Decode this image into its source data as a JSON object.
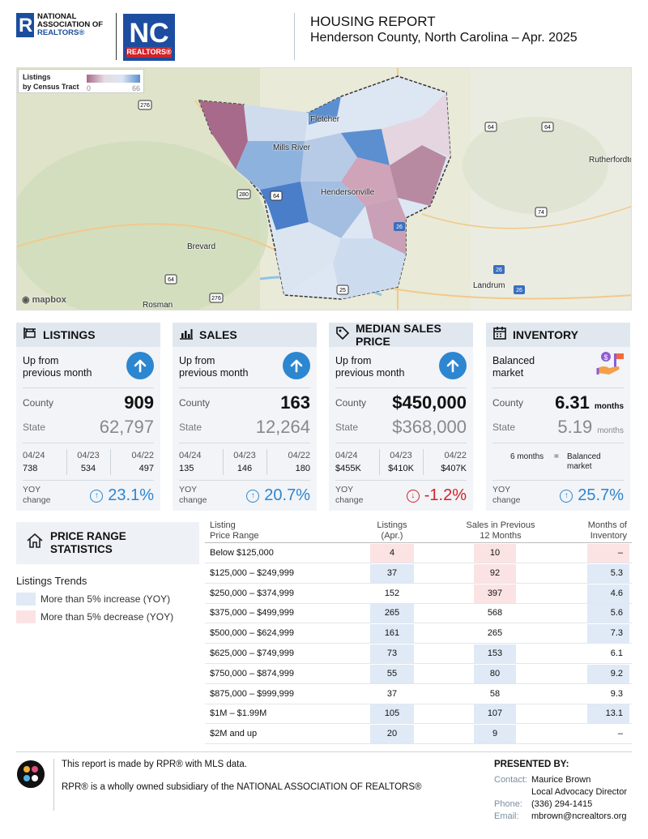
{
  "header": {
    "nar_logo_line1": "NATIONAL",
    "nar_logo_line2": "ASSOCIATION OF",
    "nar_logo_line3": "REALTORS®",
    "nc_logo_text": "NC",
    "nc_logo_sub": "REALTORS®",
    "title": "HOUSING REPORT",
    "subtitle": "Henderson County, North Carolina  –  Apr. 2025"
  },
  "map": {
    "legend_line1": "Listings",
    "legend_line2": "by Census Tract",
    "legend_min": "0",
    "legend_max": "66",
    "places": [
      "Fletcher",
      "Mills River",
      "Hendersonville",
      "Brevard",
      "Rutherfordton",
      "Landrum",
      "Rosman"
    ],
    "routes": [
      "276",
      "64",
      "64",
      "280",
      "64",
      "74",
      "26",
      "26",
      "25",
      "276",
      "64",
      "26"
    ],
    "attribution": "mapbox"
  },
  "cards": [
    {
      "title": "LISTINGS",
      "icon": "sign-icon",
      "trend_line1": "Up from",
      "trend_line2": "previous month",
      "trend_icon": "arrow-up-icon",
      "county_label": "County",
      "county_value": "909",
      "state_label": "State",
      "state_value": "62,797",
      "history": [
        {
          "year": "04/24",
          "value": "738"
        },
        {
          "year": "04/23",
          "value": "534"
        },
        {
          "year": "04/22",
          "value": "497"
        }
      ],
      "yoy_line1": "YOY",
      "yoy_line2": "change",
      "yoy_value": "23.1%",
      "yoy_dir": "up"
    },
    {
      "title": "SALES",
      "icon": "bar-chart-icon",
      "trend_line1": "Up from",
      "trend_line2": "previous month",
      "trend_icon": "arrow-up-icon",
      "county_label": "County",
      "county_value": "163",
      "state_label": "State",
      "state_value": "12,264",
      "history": [
        {
          "year": "04/24",
          "value": "135"
        },
        {
          "year": "04/23",
          "value": "146"
        },
        {
          "year": "04/22",
          "value": "180"
        }
      ],
      "yoy_line1": "YOY",
      "yoy_line2": "change",
      "yoy_value": "20.7%",
      "yoy_dir": "up"
    },
    {
      "title": "MEDIAN SALES PRICE",
      "icon": "price-tag-icon",
      "trend_line1": "Up from",
      "trend_line2": "previous month",
      "trend_icon": "arrow-up-icon",
      "county_label": "County",
      "county_value": "$450,000",
      "state_label": "State",
      "state_value": "$368,000",
      "history": [
        {
          "year": "04/24",
          "value": "$455K"
        },
        {
          "year": "04/23",
          "value": "$410K"
        },
        {
          "year": "04/22",
          "value": "$407K"
        }
      ],
      "yoy_line1": "YOY",
      "yoy_line2": "change",
      "yoy_value": "-1.2%",
      "yoy_dir": "down"
    },
    {
      "title": "INVENTORY",
      "icon": "calendar-icon",
      "trend_line1": "Balanced",
      "trend_line2": "market",
      "trend_icon": "hand-money-icon",
      "county_label": "County",
      "county_value": "6.31",
      "county_unit": "months",
      "state_label": "State",
      "state_value": "5.19",
      "state_unit": "months",
      "note_left": "6 months",
      "note_eq": "=",
      "note_right_1": "Balanced",
      "note_right_2": "market",
      "yoy_line1": "YOY",
      "yoy_line2": "change",
      "yoy_value": "25.7%",
      "yoy_dir": "up"
    }
  ],
  "price_range": {
    "title_line1": "PRICE RANGE",
    "title_line2": "STATISTICS",
    "trends_title": "Listings Trends",
    "legend_up": "More than 5% increase (YOY)",
    "legend_down": "More than 5% decrease (YOY)",
    "colors": {
      "up": "#dfeaf6",
      "down": "#fbe3e4"
    },
    "headers": {
      "range_1": "Listing",
      "range_2": "Price Range",
      "listings_1": "Listings",
      "listings_2": "(Apr.)",
      "sales_1": "Sales in Previous",
      "sales_2": "12 Months",
      "months_1": "Months of",
      "months_2": "Inventory"
    },
    "rows": [
      {
        "range": "Below $125,000",
        "listings": "4",
        "sales": "10",
        "months": "–",
        "l": "down",
        "s": "down",
        "m": "down"
      },
      {
        "range": "$125,000  –  $249,999",
        "listings": "37",
        "sales": "92",
        "months": "5.3",
        "l": "up",
        "s": "down",
        "m": "up"
      },
      {
        "range": "$250,000  –  $374,999",
        "listings": "152",
        "sales": "397",
        "months": "4.6",
        "l": "",
        "s": "down",
        "m": "up"
      },
      {
        "range": "$375,000  –  $499,999",
        "listings": "265",
        "sales": "568",
        "months": "5.6",
        "l": "up",
        "s": "",
        "m": "up"
      },
      {
        "range": "$500,000  –  $624,999",
        "listings": "161",
        "sales": "265",
        "months": "7.3",
        "l": "up",
        "s": "",
        "m": "up"
      },
      {
        "range": "$625,000  –  $749,999",
        "listings": "73",
        "sales": "153",
        "months": "6.1",
        "l": "up",
        "s": "up",
        "m": ""
      },
      {
        "range": "$750,000  –  $874,999",
        "listings": "55",
        "sales": "80",
        "months": "9.2",
        "l": "up",
        "s": "up",
        "m": "up"
      },
      {
        "range": "$875,000  –  $999,999",
        "listings": "37",
        "sales": "58",
        "months": "9.3",
        "l": "",
        "s": "",
        "m": ""
      },
      {
        "range": "$1M  –  $1.99M",
        "listings": "105",
        "sales": "107",
        "months": "13.1",
        "l": "up",
        "s": "up",
        "m": "up"
      },
      {
        "range": "$2M  and  up",
        "listings": "20",
        "sales": "9",
        "months": "–",
        "l": "up",
        "s": "up",
        "m": ""
      }
    ]
  },
  "footer": {
    "line1": "This report is made by RPR® with MLS data.",
    "line2": "RPR® is a wholly owned subsidiary of the NATIONAL ASSOCIATION OF REALTORS®",
    "presented_by": "PRESENTED BY:",
    "contact_label": "Contact:",
    "contact_name": "Maurice Brown",
    "contact_title": "Local Advocacy Director",
    "phone_label": "Phone:",
    "phone": "(336) 294-1415",
    "email_label": "Email:",
    "email": "mbrown@ncrealtors.org"
  }
}
